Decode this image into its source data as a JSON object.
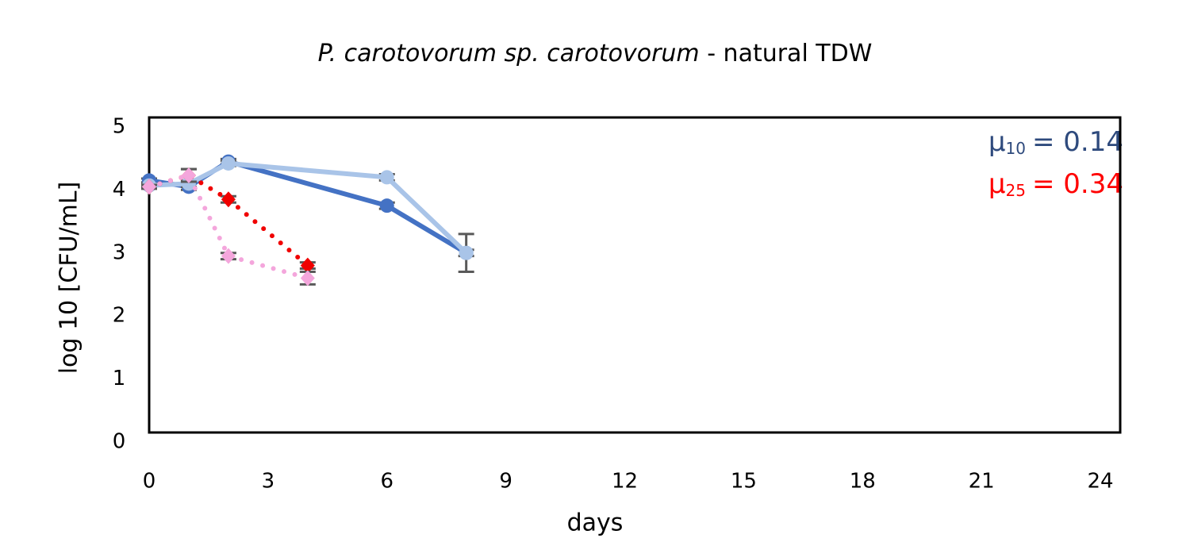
{
  "chart_data": {
    "type": "line",
    "title": {
      "italic": "P. carotovorum sp. carotovorum",
      "text": "- natural TDW"
    },
    "xlabel": "days",
    "ylabel": "log 10  [CFU/mL]",
    "xlim": [
      0,
      24.5
    ],
    "xticks": [
      0,
      3,
      6,
      9,
      12,
      15,
      18,
      21,
      24
    ],
    "ylim": [
      0,
      5
    ],
    "yticks": [
      0,
      1,
      2,
      3,
      4,
      5
    ],
    "series": [
      {
        "color": "#4472c4",
        "line": "solid",
        "marker": "circle",
        "x": [
          0,
          1,
          2,
          6,
          8
        ],
        "values": [
          4.0,
          3.9,
          4.3,
          3.6,
          2.85
        ],
        "errors": [
          0.03,
          0.05,
          0.04,
          0.05,
          0.05
        ]
      },
      {
        "color": "#a9c4e8",
        "line": "solid",
        "marker": "circle",
        "x": [
          0,
          1,
          2,
          6,
          8
        ],
        "values": [
          3.92,
          3.95,
          4.27,
          4.05,
          2.85
        ],
        "errors": [
          0.03,
          0.05,
          0.04,
          0.05,
          0.3
        ]
      },
      {
        "color": "#f00000",
        "line": "dotted",
        "marker": "diamond",
        "x": [
          0,
          1,
          2,
          4
        ],
        "values": [
          3.9,
          4.08,
          3.7,
          2.65
        ],
        "errors": [
          0.03,
          0.1,
          0.05,
          0.05
        ]
      },
      {
        "color": "#f4a6dc",
        "line": "dotted",
        "marker": "diamond",
        "x": [
          0,
          1,
          2,
          4
        ],
        "values": [
          3.9,
          4.08,
          2.8,
          2.45
        ],
        "errors": [
          0.03,
          0.1,
          0.05,
          0.1
        ]
      }
    ],
    "annotations": [
      {
        "symbol": "μ",
        "subscript": "10",
        "text": "= 0.14",
        "color": "#2e4a7d"
      },
      {
        "symbol": "μ",
        "subscript": "25",
        "text": "= 0.34",
        "color": "#ff0000"
      }
    ]
  }
}
